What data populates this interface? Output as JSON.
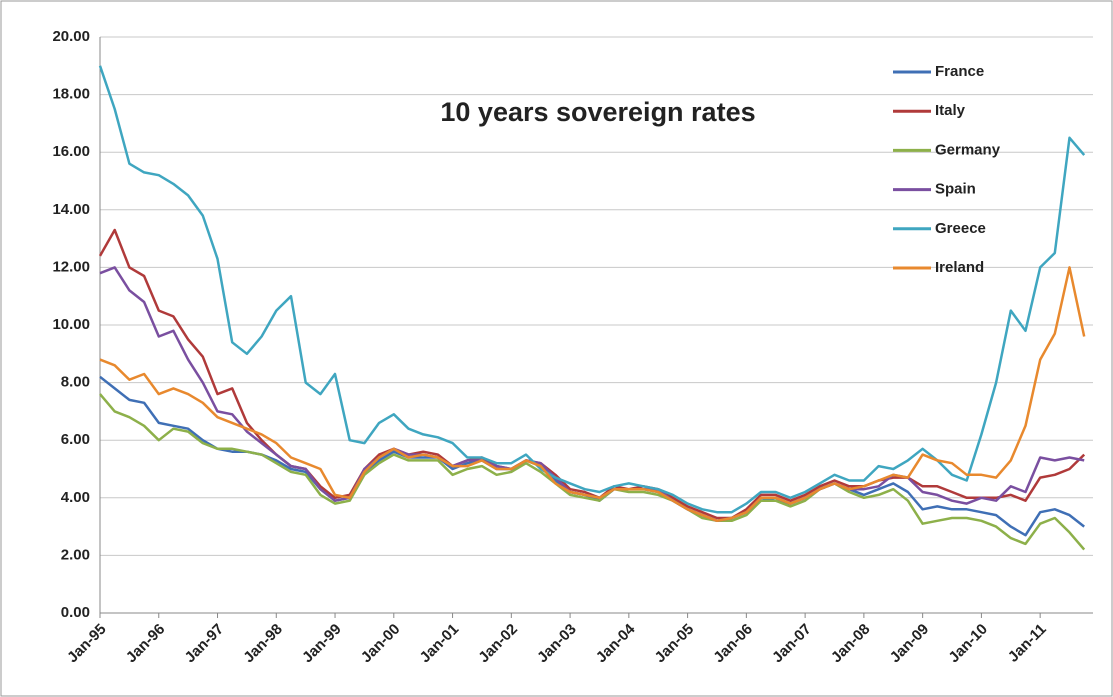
{
  "chart_data": {
    "type": "line",
    "title": "10 years sovereign  rates",
    "categories": [
      "Jan-95",
      null,
      null,
      null,
      "Jan-96",
      null,
      null,
      null,
      "Jan-97",
      null,
      null,
      null,
      "Jan-98",
      null,
      null,
      null,
      "Jan-99",
      null,
      null,
      null,
      "Jan-00",
      null,
      null,
      null,
      "Jan-01",
      null,
      null,
      null,
      "Jan-02",
      null,
      null,
      null,
      "Jan-03",
      null,
      null,
      null,
      "Jan-04",
      null,
      null,
      null,
      "Jan-05",
      null,
      null,
      null,
      "Jan-06",
      null,
      null,
      null,
      "Jan-07",
      null,
      null,
      null,
      "Jan-08",
      null,
      null,
      null,
      "Jan-09",
      null,
      null,
      null,
      "Jan-10",
      null,
      null,
      null,
      "Jan-11",
      null,
      null,
      null
    ],
    "series": [
      {
        "name": "France",
        "color": "#3f6fb5",
        "values": [
          8.2,
          7.8,
          7.4,
          7.3,
          6.6,
          6.5,
          6.4,
          6.0,
          5.7,
          5.6,
          5.6,
          5.5,
          5.3,
          5.0,
          4.9,
          4.3,
          3.9,
          4.0,
          4.9,
          5.3,
          5.6,
          5.4,
          5.4,
          5.4,
          5.0,
          5.2,
          5.3,
          5.0,
          5.0,
          5.3,
          5.1,
          4.6,
          4.2,
          4.1,
          3.9,
          4.3,
          4.3,
          4.3,
          4.2,
          3.9,
          3.6,
          3.4,
          3.2,
          3.3,
          3.5,
          4.0,
          3.9,
          3.8,
          4.0,
          4.3,
          4.5,
          4.3,
          4.1,
          4.3,
          4.5,
          4.2,
          3.6,
          3.7,
          3.6,
          3.6,
          3.5,
          3.4,
          3.0,
          2.7,
          3.5,
          3.6,
          3.4,
          3.0
        ]
      },
      {
        "name": "Italy",
        "color": "#b03a3a",
        "values": [
          12.4,
          13.3,
          12.0,
          11.7,
          10.5,
          10.3,
          9.5,
          8.9,
          7.6,
          7.8,
          6.6,
          6.0,
          5.5,
          5.1,
          5.0,
          4.4,
          4.0,
          4.1,
          5.0,
          5.5,
          5.7,
          5.5,
          5.6,
          5.5,
          5.1,
          5.3,
          5.4,
          5.1,
          5.0,
          5.3,
          5.2,
          4.8,
          4.3,
          4.2,
          4.0,
          4.4,
          4.3,
          4.4,
          4.3,
          4.0,
          3.7,
          3.5,
          3.3,
          3.3,
          3.6,
          4.1,
          4.1,
          3.9,
          4.1,
          4.4,
          4.6,
          4.4,
          4.4,
          4.6,
          4.7,
          4.7,
          4.4,
          4.4,
          4.2,
          4.0,
          4.0,
          4.0,
          4.1,
          3.9,
          4.7,
          4.8,
          5.0,
          5.5
        ]
      },
      {
        "name": "Germany",
        "color": "#8db04a",
        "values": [
          7.6,
          7.0,
          6.8,
          6.5,
          6.0,
          6.4,
          6.3,
          5.9,
          5.7,
          5.7,
          5.6,
          5.5,
          5.2,
          4.9,
          4.8,
          4.1,
          3.8,
          3.9,
          4.8,
          5.2,
          5.5,
          5.3,
          5.3,
          5.3,
          4.8,
          5.0,
          5.1,
          4.8,
          4.9,
          5.2,
          4.9,
          4.5,
          4.1,
          4.0,
          3.9,
          4.3,
          4.2,
          4.2,
          4.1,
          3.9,
          3.6,
          3.3,
          3.2,
          3.2,
          3.4,
          3.9,
          3.9,
          3.7,
          3.9,
          4.3,
          4.5,
          4.2,
          4.0,
          4.1,
          4.3,
          3.9,
          3.1,
          3.2,
          3.3,
          3.3,
          3.2,
          3.0,
          2.6,
          2.4,
          3.1,
          3.3,
          2.8,
          2.2
        ]
      },
      {
        "name": "Spain",
        "color": "#7a4fa0",
        "values": [
          11.8,
          12.0,
          11.2,
          10.8,
          9.6,
          9.8,
          8.8,
          8.0,
          7.0,
          6.9,
          6.3,
          5.9,
          5.5,
          5.1,
          5.0,
          4.3,
          3.9,
          4.0,
          5.0,
          5.4,
          5.7,
          5.5,
          5.5,
          5.4,
          5.1,
          5.3,
          5.3,
          5.1,
          5.0,
          5.3,
          5.2,
          4.7,
          4.2,
          4.1,
          4.0,
          4.3,
          4.3,
          4.3,
          4.3,
          3.9,
          3.6,
          3.4,
          3.2,
          3.3,
          3.5,
          4.0,
          4.0,
          3.8,
          4.0,
          4.3,
          4.5,
          4.3,
          4.3,
          4.4,
          4.8,
          4.7,
          4.2,
          4.1,
          3.9,
          3.8,
          4.0,
          3.9,
          4.4,
          4.2,
          5.4,
          5.3,
          5.4,
          5.3
        ]
      },
      {
        "name": "Greece",
        "color": "#3fa6c0",
        "values": [
          19.0,
          17.5,
          15.6,
          15.3,
          15.2,
          14.9,
          14.5,
          13.8,
          12.3,
          9.4,
          9.0,
          9.6,
          10.5,
          11.0,
          8.0,
          7.6,
          8.3,
          6.0,
          5.9,
          6.6,
          6.9,
          6.4,
          6.2,
          6.1,
          5.9,
          5.4,
          5.4,
          5.2,
          5.2,
          5.5,
          5.0,
          4.7,
          4.5,
          4.3,
          4.2,
          4.4,
          4.5,
          4.4,
          4.3,
          4.1,
          3.8,
          3.6,
          3.5,
          3.5,
          3.8,
          4.2,
          4.2,
          4.0,
          4.2,
          4.5,
          4.8,
          4.6,
          4.6,
          5.1,
          5.0,
          5.3,
          5.7,
          5.3,
          4.8,
          4.6,
          6.2,
          8.0,
          10.5,
          9.8,
          12.0,
          12.5,
          16.5,
          15.9
        ]
      },
      {
        "name": "Ireland",
        "color": "#e8892e",
        "values": [
          8.8,
          8.6,
          8.1,
          8.3,
          7.6,
          7.8,
          7.6,
          7.3,
          6.8,
          6.6,
          6.4,
          6.2,
          5.9,
          5.4,
          5.2,
          5.0,
          4.1,
          4.0,
          4.9,
          5.4,
          5.7,
          5.4,
          5.5,
          5.4,
          5.1,
          5.1,
          5.3,
          5.0,
          5.0,
          5.3,
          5.1,
          4.5,
          4.2,
          4.1,
          4.0,
          4.3,
          4.3,
          4.3,
          4.2,
          3.9,
          3.6,
          3.4,
          3.2,
          3.3,
          3.5,
          4.0,
          4.0,
          3.8,
          4.0,
          4.3,
          4.5,
          4.3,
          4.4,
          4.6,
          4.8,
          4.7,
          5.5,
          5.3,
          5.2,
          4.8,
          4.8,
          4.7,
          5.3,
          6.5,
          8.8,
          9.7,
          12.0,
          9.6
        ]
      }
    ],
    "ylim": [
      0,
      20
    ],
    "yticks": [
      {
        "value": 0,
        "label": "0.00"
      },
      {
        "value": 2,
        "label": "2.00"
      },
      {
        "value": 4,
        "label": "4.00"
      },
      {
        "value": 6,
        "label": "6.00"
      },
      {
        "value": 8,
        "label": "8.00"
      },
      {
        "value": 10,
        "label": "10.00"
      },
      {
        "value": 12,
        "label": "12.00"
      },
      {
        "value": 14,
        "label": "14.00"
      },
      {
        "value": 16,
        "label": "16.00"
      },
      {
        "value": 18,
        "label": "18.00"
      },
      {
        "value": 20,
        "label": "20.00"
      }
    ],
    "grid": true,
    "legend": "upper right"
  }
}
